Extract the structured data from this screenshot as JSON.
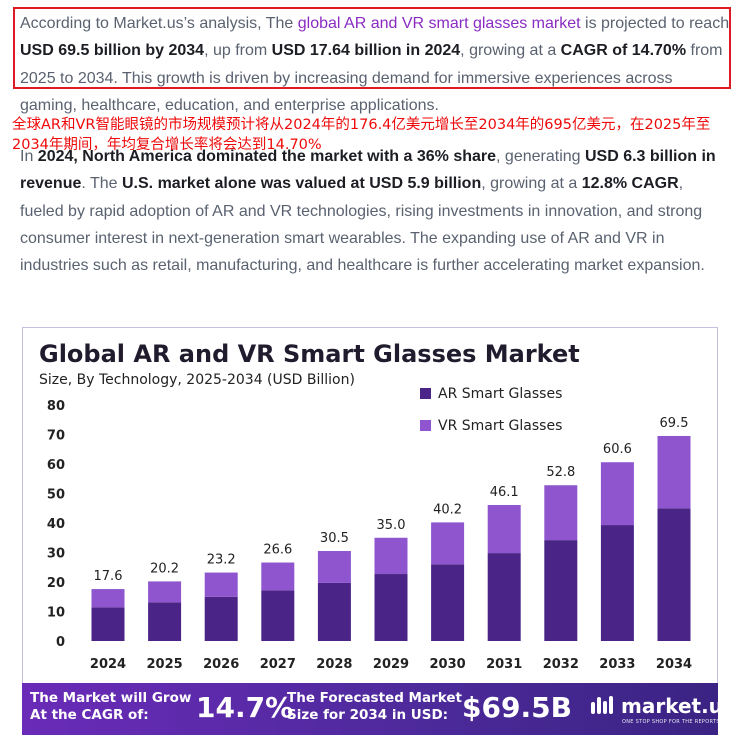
{
  "paragraph1": {
    "t1": "According to Market.us’s analysis, The ",
    "link": "global AR and VR smart glasses market",
    "t2": " is projected to reach ",
    "b1": "USD 69.5 billion by 2034",
    "t3": ", up from ",
    "b2": "USD 17.64 billion in 2024",
    "t4": ", growing at a ",
    "b3": "CAGR of 14.70%",
    "t5": " from 2025 to 2034. This growth is driven by increasing demand for immersive experiences across gaming, healthcare, education, and enterprise applications."
  },
  "translation_note": "全球AR和VR智能眼镜的市场规模预计将从2024年的176.4亿美元增长至2034年的695亿美元，在2025年至2034年期间，年均复合增长率将会达到14.70%",
  "paragraph2": {
    "t1": "In ",
    "b1": "2024, North America dominated the market with a 36% share",
    "t2": ", generating ",
    "b2": "USD 6.3 billion in revenue",
    "t3": ". The ",
    "b3": "U.S. market alone was valued at USD 5.9 billion",
    "t4": ", growing at a ",
    "b4": "12.8% CAGR",
    "t5": ", fueled by rapid adoption of AR and VR technologies, rising investments in innovation, and strong consumer interest in next-generation smart wearables. The expanding use of AR and VR in industries such as retail, manufacturing, and healthcare is further accelerating market expansion."
  },
  "chart_data": {
    "type": "bar",
    "stacked": true,
    "title": "Global AR and VR Smart Glasses Market",
    "subtitle": "Size, By Technology, 2025-2034 (USD Billion)",
    "categories": [
      "2024",
      "2025",
      "2026",
      "2027",
      "2028",
      "2029",
      "2030",
      "2031",
      "2032",
      "2033",
      "2034"
    ],
    "totals": [
      "17.6",
      "20.2",
      "23.2",
      "26.6",
      "30.5",
      "35.0",
      "40.2",
      "46.1",
      "52.8",
      "60.6",
      "69.5"
    ],
    "series": [
      {
        "name": "AR Smart Glasses",
        "color": "#4a2486",
        "values": [
          11.4,
          13.1,
          15.0,
          17.2,
          19.7,
          22.7,
          26.0,
          29.8,
          34.2,
          39.3,
          45.0
        ]
      },
      {
        "name": "VR Smart Glasses",
        "color": "#8e55cf",
        "values": [
          6.2,
          7.1,
          8.2,
          9.4,
          10.8,
          12.3,
          14.2,
          16.3,
          18.6,
          21.3,
          24.5
        ]
      }
    ],
    "yticks": [
      "0",
      "10",
      "20",
      "30",
      "40",
      "50",
      "60",
      "70",
      "80"
    ],
    "ylim": [
      0,
      80
    ],
    "legend_position": "top-right"
  },
  "banner": {
    "label1": "The Market will Grow At the CAGR of:",
    "value1": "14.7%",
    "label2": "The Forecasted Market Size for 2034 in USD:",
    "value2": "$69.5B",
    "brand": "market.us",
    "tagline": "ONE STOP SHOP FOR THE REPORTS"
  }
}
